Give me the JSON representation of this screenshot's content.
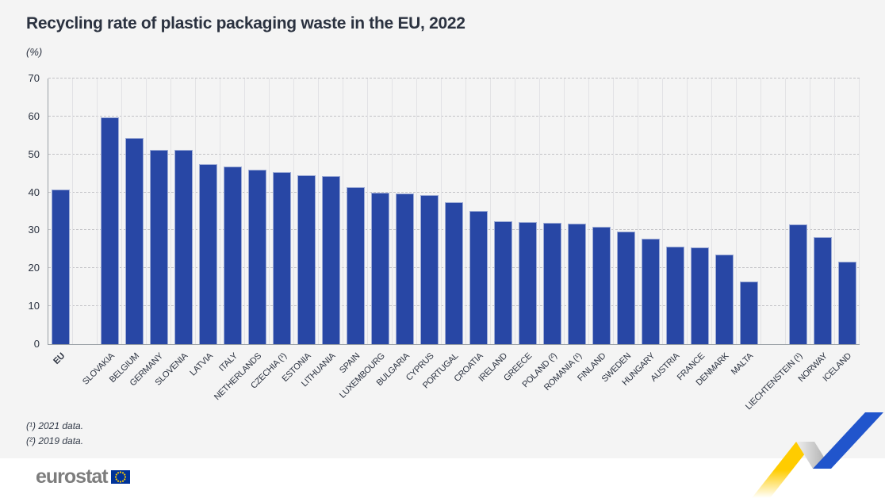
{
  "header": {
    "title": "Recycling rate of plastic packaging waste in the EU, 2022",
    "unit_label": "(%)"
  },
  "footnotes": [
    "(¹) 2021 data.",
    "(²) 2019 data."
  ],
  "logo": {
    "wordmark": "eurostat"
  },
  "colors": {
    "panel_background": "#f4f4f4",
    "bar": "#2847A5",
    "text": "#2b3240",
    "axis": "#9aa0a6",
    "flag_blue": "#003399",
    "flag_yellow": "#FFCC00",
    "ribbon_blue": "#2155CC",
    "ribbon_yellow": "#FFCC00"
  },
  "chart_data": {
    "type": "bar",
    "title": "Recycling rate of plastic packaging waste in the EU, 2022",
    "xlabel": "",
    "ylabel": "(%)",
    "ylim": [
      0,
      70
    ],
    "yticks": [
      0,
      10,
      20,
      30,
      40,
      50,
      60,
      70
    ],
    "grid": "horizontal-dashed",
    "legend": "none",
    "emphasized_category": "EU",
    "gap_after": [
      "EU",
      "MALTA"
    ],
    "categories": [
      "EU",
      "SLOVAKIA",
      "BELGIUM",
      "GERMANY",
      "SLOVENIA",
      "LATVIA",
      "ITALY",
      "NETHERLANDS",
      "CZECHIA (¹)",
      "ESTONIA",
      "LITHUANIA",
      "SPAIN",
      "LUXEMBOURG",
      "BULGARIA",
      "CYPRUS",
      "PORTUGAL",
      "CROATIA",
      "IRELAND",
      "GREECE",
      "POLAND (²)",
      "ROMANIA (¹)",
      "FINLAND",
      "SWEDEN",
      "HUNGARY",
      "AUSTRIA",
      "FRANCE",
      "DENMARK",
      "MALTA",
      "LIECHTENSTEIN (¹)",
      "NORWAY",
      "ICELAND"
    ],
    "values": [
      40.7,
      59.7,
      54.4,
      51.3,
      51.2,
      47.4,
      46.8,
      46.0,
      45.3,
      44.5,
      44.2,
      41.4,
      40.0,
      39.7,
      39.2,
      37.5,
      35.2,
      32.4,
      32.1,
      32.0,
      31.8,
      31.0,
      29.6,
      27.8,
      25.7,
      25.4,
      23.7,
      16.6,
      31.6,
      28.2,
      21.7
    ]
  }
}
